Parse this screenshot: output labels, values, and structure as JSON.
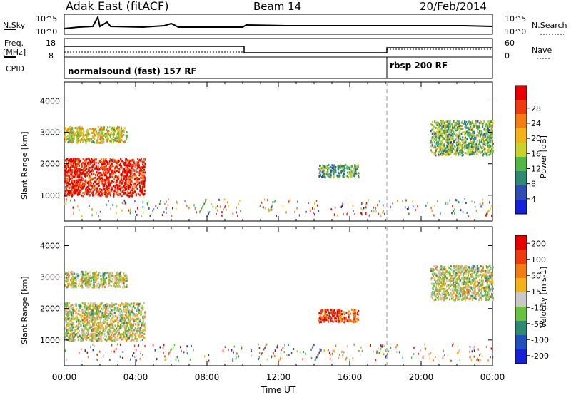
{
  "header": {
    "radar": "Adak East (fitACF)",
    "beam": "Beam 14",
    "date": "20/Feb/2014"
  },
  "top_panels": {
    "nsky_label": "N.Sky",
    "nsky_ticks": [
      "10^5",
      "10^0"
    ],
    "nsearch_label": "N.Search",
    "nsearch_ticks": [
      "10^5",
      "10^0"
    ],
    "freq_label_1": "Freq.",
    "freq_label_2": "[MHz]",
    "freq_ticks": [
      "18",
      "8"
    ],
    "nave_label": "Nave",
    "nave_ticks": [
      "60",
      "0"
    ],
    "cpid_label": "CPID",
    "cpid_modes": [
      "normalsound (fast) 157 RF",
      "rbsp 200 RF"
    ]
  },
  "chart_data": [
    {
      "type": "heatmap",
      "name": "power",
      "ylabel": "Slant Range [km]",
      "yticks": [
        "1000",
        "2000",
        "3000",
        "4000"
      ],
      "colorbar": {
        "label": "Power [dB]",
        "ticks": [
          "4",
          "8",
          "12",
          "16",
          "20",
          "24",
          "28"
        ],
        "colors": [
          "#1522d6",
          "#2e4fb0",
          "#2f8a73",
          "#55b648",
          "#c8d22a",
          "#f2b21a",
          "#f27d12",
          "#ee3a10",
          "#e80000"
        ]
      },
      "regions": [
        {
          "x": [
            0.0,
            4.5
          ],
          "y": [
            1000,
            2200
          ],
          "level": 0.9
        },
        {
          "x": [
            0.0,
            3.5
          ],
          "y": [
            2700,
            3200
          ],
          "level": 0.55
        },
        {
          "x": [
            14.2,
            16.5
          ],
          "y": [
            1600,
            2000
          ],
          "level": 0.35
        },
        {
          "x": [
            20.5,
            24.0
          ],
          "y": [
            2300,
            3400
          ],
          "level": 0.4
        }
      ]
    },
    {
      "type": "heatmap",
      "name": "velocity",
      "ylabel": "Slant Range [km]",
      "yticks": [
        "1000",
        "2000",
        "3000",
        "4000"
      ],
      "colorbar": {
        "label": "Velocity [m s-1]",
        "ticks": [
          "200",
          "100",
          "50",
          "15",
          "-15",
          "-50",
          "-100",
          "-200"
        ],
        "colors": [
          "#1522d6",
          "#2050b8",
          "#2e8a70",
          "#6ac040",
          "#c8c8c8",
          "#f2b21a",
          "#f27d12",
          "#ee3a10",
          "#e80000"
        ]
      },
      "regions": [
        {
          "x": [
            0.0,
            4.5
          ],
          "y": [
            1000,
            2200
          ],
          "level": 0.5
        },
        {
          "x": [
            0.0,
            3.5
          ],
          "y": [
            2700,
            3200
          ],
          "level": 0.5
        },
        {
          "x": [
            14.2,
            16.5
          ],
          "y": [
            1600,
            2000
          ],
          "level": 0.8
        },
        {
          "x": [
            20.5,
            24.0
          ],
          "y": [
            2300,
            3400
          ],
          "level": 0.5
        }
      ]
    }
  ],
  "xaxis": {
    "label": "Time UT",
    "ticks": [
      "00:00",
      "04:00",
      "08:00",
      "12:00",
      "16:00",
      "20:00",
      "00:00"
    ]
  }
}
